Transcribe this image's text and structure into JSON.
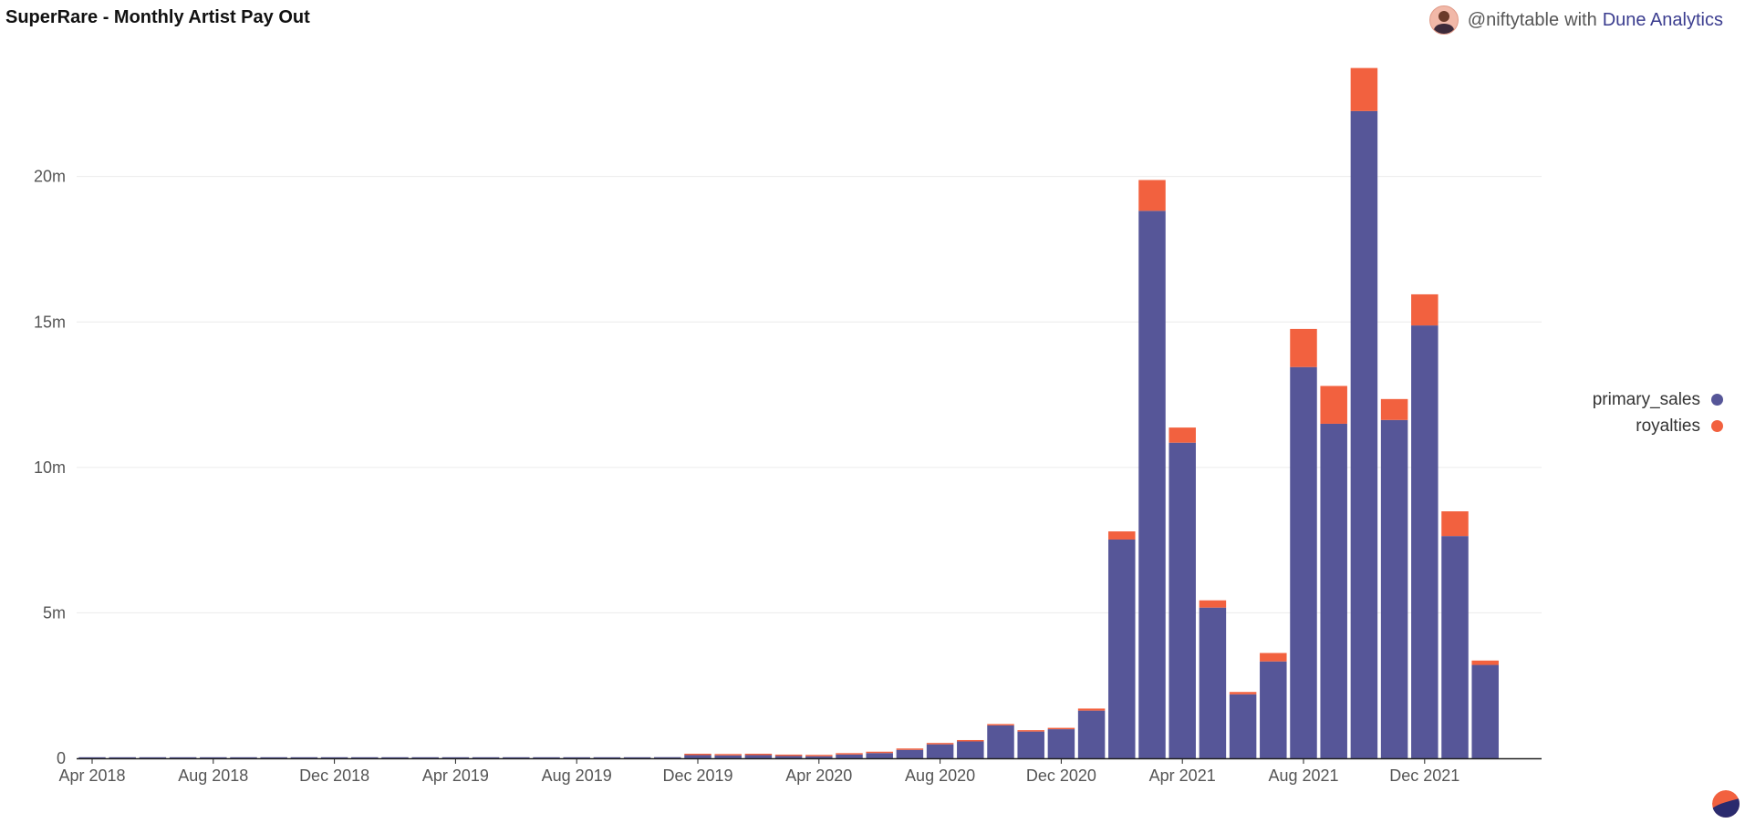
{
  "header": {
    "title": "SuperRare - Monthly Artist Pay Out",
    "credit_handle": "@niftytable",
    "credit_with": "with",
    "credit_source": "Dune Analytics"
  },
  "colors": {
    "primary_sales": "#565698",
    "royalties": "#f2613f",
    "grid": "#ececec",
    "axis": "#222222"
  },
  "chart_data": {
    "type": "bar",
    "stacked": true,
    "title": "SuperRare - Monthly Artist Pay Out",
    "xlabel": "",
    "ylabel": "",
    "ylim": [
      0,
      24000000
    ],
    "yticks": [
      0,
      5000000,
      10000000,
      15000000,
      20000000
    ],
    "ytick_labels": [
      "0",
      "5m",
      "10m",
      "15m",
      "20m"
    ],
    "xtick_labels": [
      "Apr 2018",
      "Aug 2018",
      "Dec 2018",
      "Apr 2019",
      "Aug 2019",
      "Dec 2019",
      "Apr 2020",
      "Aug 2020",
      "Dec 2020",
      "Apr 2021",
      "Aug 2021",
      "Dec 2021"
    ],
    "categories": [
      "2018-04",
      "2018-05",
      "2018-06",
      "2018-07",
      "2018-08",
      "2018-09",
      "2018-10",
      "2018-11",
      "2018-12",
      "2019-01",
      "2019-02",
      "2019-03",
      "2019-04",
      "2019-05",
      "2019-06",
      "2019-07",
      "2019-08",
      "2019-09",
      "2019-10",
      "2019-11",
      "2019-12",
      "2020-01",
      "2020-02",
      "2020-03",
      "2020-04",
      "2020-05",
      "2020-06",
      "2020-07",
      "2020-08",
      "2020-09",
      "2020-10",
      "2020-11",
      "2020-12",
      "2021-01",
      "2021-02",
      "2021-03",
      "2021-04",
      "2021-05",
      "2021-06",
      "2021-07",
      "2021-08",
      "2021-09",
      "2021-10",
      "2021-11",
      "2021-12",
      "2022-01",
      "2022-02"
    ],
    "series": [
      {
        "name": "primary_sales",
        "values": [
          5000,
          8000,
          10000,
          10000,
          12000,
          12000,
          15000,
          15000,
          15000,
          15000,
          15000,
          15000,
          20000,
          20000,
          20000,
          20000,
          25000,
          30000,
          35000,
          40000,
          110000,
          100000,
          110000,
          80000,
          70000,
          130000,
          180000,
          290000,
          480000,
          580000,
          1130000,
          920000,
          1000000,
          1640000,
          7520000,
          18820000,
          10850000,
          5180000,
          2200000,
          3330000,
          13450000,
          11500000,
          22250000,
          11630000,
          14880000,
          7640000,
          3210000
        ]
      },
      {
        "name": "royalties",
        "values": [
          0,
          0,
          0,
          0,
          0,
          0,
          0,
          0,
          0,
          0,
          0,
          0,
          0,
          0,
          0,
          0,
          0,
          0,
          0,
          0,
          5000,
          5000,
          5000,
          5000,
          5000,
          5000,
          5000,
          10000,
          20000,
          20000,
          30000,
          30000,
          40000,
          70000,
          280000,
          1060000,
          520000,
          250000,
          80000,
          290000,
          1310000,
          1300000,
          1480000,
          720000,
          1070000,
          850000,
          150000
        ]
      }
    ],
    "legend": [
      "primary_sales",
      "royalties"
    ],
    "legend_position": "right",
    "grid": true
  }
}
